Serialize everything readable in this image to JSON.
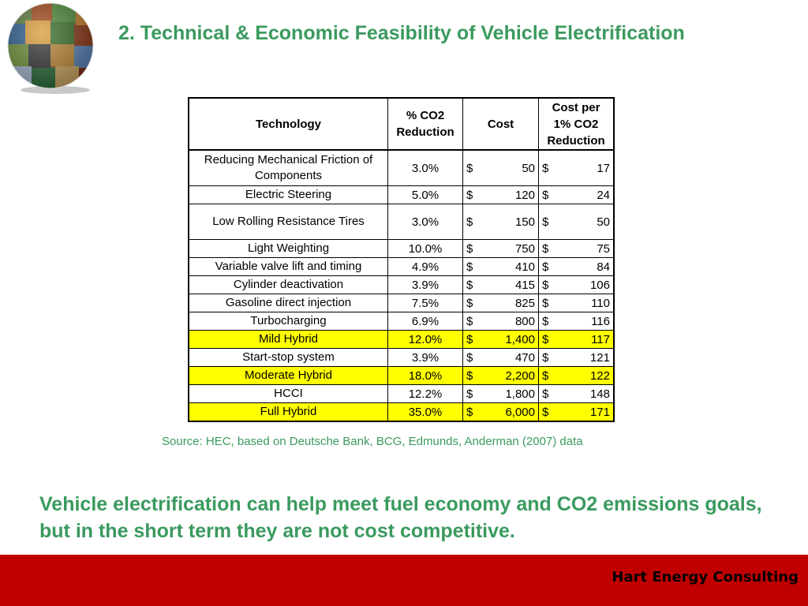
{
  "slide": {
    "title": "2. Technical & Economic Feasibility of Vehicle Electrification",
    "source": "Source: HEC, based on Deutsche Bank, BCG, Edmunds, Anderman (2007) data",
    "conclusion": "Vehicle electrification can help meet fuel economy and CO2 emissions goals, but in the short term they are not cost competitive.",
    "footer": "Hart Energy Consulting",
    "colors": {
      "title": "#3a9a5e",
      "footer_bar": "#c00000",
      "highlight": "#ffff00"
    }
  },
  "table": {
    "headers": {
      "technology": "Technology",
      "co2_reduction": "% CO2 Reduction",
      "cost": "Cost",
      "cost_per": "Cost per 1% CO2 Reduction"
    },
    "currency": "$",
    "rows": [
      {
        "technology": "Reducing Mechanical Friction of Components",
        "co2": "3.0%",
        "cost": "50",
        "cost_per": "17",
        "highlight": false
      },
      {
        "technology": "Electric Steering",
        "co2": "5.0%",
        "cost": "120",
        "cost_per": "24",
        "highlight": false
      },
      {
        "technology": "Low Rolling Resistance Tires",
        "co2": "3.0%",
        "cost": "150",
        "cost_per": "50",
        "highlight": false
      },
      {
        "technology": "Light Weighting",
        "co2": "10.0%",
        "cost": "750",
        "cost_per": "75",
        "highlight": false
      },
      {
        "technology": "Variable valve lift and timing",
        "co2": "4.9%",
        "cost": "410",
        "cost_per": "84",
        "highlight": false
      },
      {
        "technology": "Cylinder deactivation",
        "co2": "3.9%",
        "cost": "415",
        "cost_per": "106",
        "highlight": false
      },
      {
        "technology": "Gasoline direct injection",
        "co2": "7.5%",
        "cost": "825",
        "cost_per": "110",
        "highlight": false
      },
      {
        "technology": "Turbocharging",
        "co2": "6.9%",
        "cost": "800",
        "cost_per": "116",
        "highlight": false
      },
      {
        "technology": "Mild Hybrid",
        "co2": "12.0%",
        "cost": "1,400",
        "cost_per": "117",
        "highlight": true
      },
      {
        "technology": "Start-stop system",
        "co2": "3.9%",
        "cost": "470",
        "cost_per": "121",
        "highlight": false
      },
      {
        "technology": "Moderate Hybrid",
        "co2": "18.0%",
        "cost": "2,200",
        "cost_per": "122",
        "highlight": true
      },
      {
        "technology": "HCCI",
        "co2": "12.2%",
        "cost": "1,800",
        "cost_per": "148",
        "highlight": false
      },
      {
        "technology": "Full Hybrid",
        "co2": "35.0%",
        "cost": "6,000",
        "cost_per": "171",
        "highlight": true
      }
    ]
  }
}
